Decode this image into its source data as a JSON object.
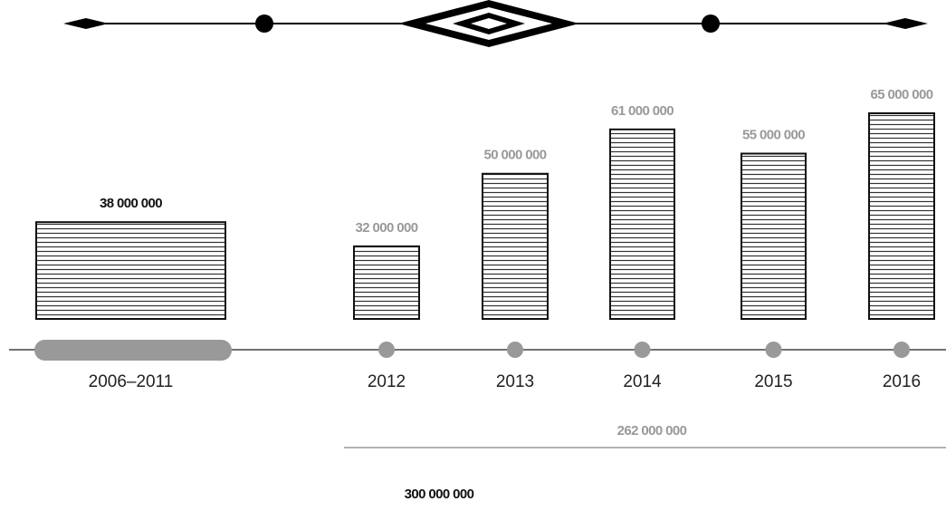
{
  "chart_data": {
    "type": "bar",
    "categories": [
      "2006–2011",
      "2012",
      "2013",
      "2014",
      "2015",
      "2016"
    ],
    "values": [
      38000000,
      32000000,
      50000000,
      61000000,
      55000000,
      65000000
    ],
    "value_labels": [
      "38 000 000",
      "32 000 000",
      "50 000 000",
      "61 000 000",
      "55 000 000",
      "65 000 000"
    ],
    "ylim": [
      14000000,
      65000000
    ],
    "annotations": [
      {
        "text": "262 000 000"
      },
      {
        "text": "300 000 000"
      }
    ]
  }
}
